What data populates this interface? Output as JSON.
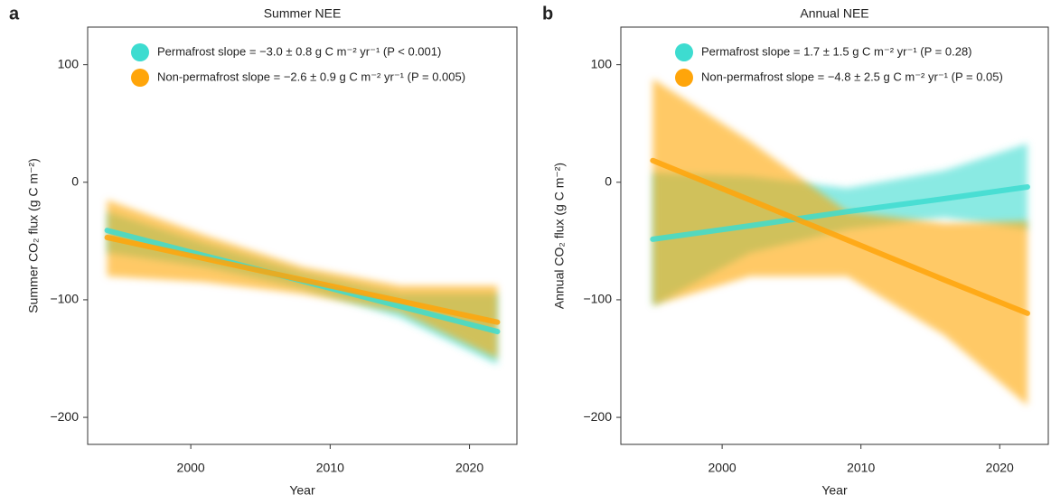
{
  "chart_data": [
    {
      "type": "band-line",
      "panel_label": "a",
      "title": "Summer NEE",
      "x_label": "Year",
      "y_label": "Summer CO₂ flux (g C m⁻²)",
      "xlim": [
        1992.6,
        2023.4
      ],
      "xticks": [
        2000,
        2010,
        2020
      ],
      "ylim": [
        -223,
        132
      ],
      "yticks": [
        100,
        0,
        {
          "value": -100,
          "label": "−100"
        },
        {
          "value": -200,
          "label": "−200"
        }
      ],
      "series": [
        {
          "name": "Permafrost slope = −3.0 ± 0.8 g C m⁻² yr⁻¹ (P < 0.001)",
          "color": "#3ddcd0",
          "x": [
            1994,
            2001,
            2008,
            2015,
            2022
          ],
          "values": [
            -41,
            -62.5,
            -84,
            -105.5,
            -127
          ],
          "lower": [
            -60,
            -72,
            -90,
            -115,
            -155
          ],
          "upper": [
            -25,
            -52,
            -77,
            -95,
            -95
          ]
        },
        {
          "name": "Non-permafrost slope = −2.6 ± 0.9 g C m⁻² yr⁻¹ (P = 0.005)",
          "color": "#ffa50a",
          "x": [
            1994,
            2001,
            2008,
            2015,
            2022
          ],
          "values": [
            -47,
            -65,
            -83,
            -101,
            -119
          ],
          "lower": [
            -80,
            -85,
            -95,
            -110,
            -150
          ],
          "upper": [
            -15,
            -45,
            -72,
            -88,
            -88
          ]
        }
      ]
    },
    {
      "type": "band-line",
      "panel_label": "b",
      "title": "Annual NEE",
      "x_label": "Year",
      "y_label": "Annual CO₂ flux (g C m⁻²)",
      "xlim": [
        1992.7,
        2023.5
      ],
      "xticks": [
        2000,
        2010,
        2020
      ],
      "ylim": [
        -223,
        132
      ],
      "yticks": [
        100,
        0,
        {
          "value": -100,
          "label": "−100"
        },
        {
          "value": -200,
          "label": "−200"
        }
      ],
      "series": [
        {
          "name": "Permafrost slope = 1.7 ± 1.5 g C m⁻² yr⁻¹ (P = 0.28)",
          "color": "#3ddcd0",
          "x": [
            1995,
            2002,
            2009,
            2016,
            2022
          ],
          "values": [
            -48.5,
            -37,
            -25,
            -14,
            -4
          ],
          "lower": [
            -105,
            -60,
            -40,
            -30,
            -40
          ],
          "upper": [
            8,
            5,
            -5,
            10,
            33
          ]
        },
        {
          "name": "Non-permafrost slope = −4.8 ± 2.5 g C m⁻² yr⁻¹ (P = 0.05)",
          "color": "#ffa50a",
          "x": [
            1995,
            2002,
            2009,
            2016,
            2022
          ],
          "values": [
            18.5,
            -15,
            -49,
            -83,
            -111.5
          ],
          "lower": [
            -105,
            -80,
            -80,
            -130,
            -190
          ],
          "upper": [
            88,
            35,
            -25,
            -35,
            -33
          ]
        }
      ]
    }
  ]
}
